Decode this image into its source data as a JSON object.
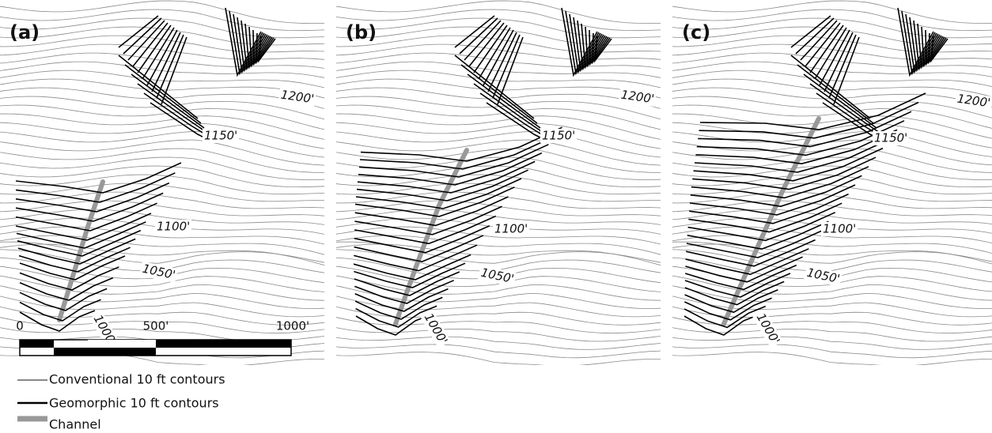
{
  "panels": [
    {
      "label": "(a)",
      "contour_labels": [
        "1200'",
        "1150'",
        "1100'",
        "1050'",
        "1000'"
      ]
    },
    {
      "label": "(b)",
      "contour_labels": [
        "1200'",
        "1150'",
        "1100'",
        "1050'",
        "1000'"
      ]
    },
    {
      "label": "(c)",
      "contour_labels": [
        "1200'",
        "1150'",
        "1100'",
        "1050'",
        "1000'"
      ]
    }
  ],
  "scale_bar": {
    "labels": [
      "0",
      "500'",
      "1000'"
    ]
  },
  "legend": [
    {
      "label": "Conventional 10 ft contours"
    },
    {
      "label": "Geomorphic 10 ft contours"
    },
    {
      "label": "Channel"
    }
  ]
}
